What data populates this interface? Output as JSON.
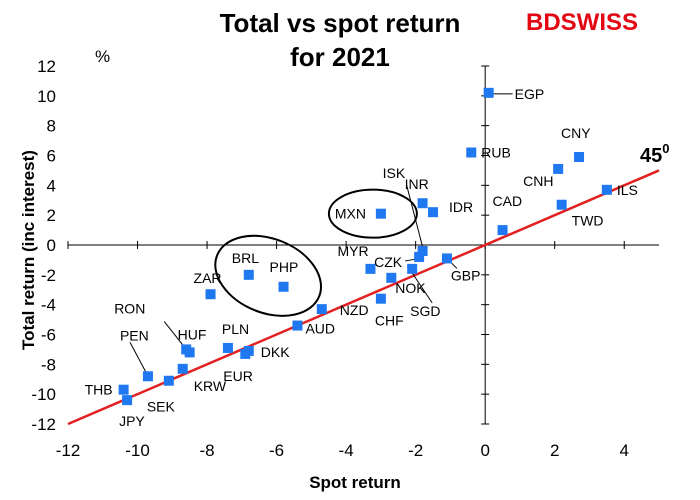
{
  "brand": {
    "part1": "BD",
    "part2": "SWISS",
    "color": "#e30613"
  },
  "chart_data": {
    "type": "scatter",
    "title": [
      "Total vs spot return",
      "for 2021"
    ],
    "unit_label": "%",
    "xlabel": "Spot return",
    "ylabel": "Total return (inc interest)",
    "xlim": [
      -12,
      5
    ],
    "ylim": [
      -12,
      12
    ],
    "xticks": [
      -12,
      -10,
      -8,
      -6,
      -4,
      -2,
      0,
      2,
      4
    ],
    "yticks": [
      12,
      10,
      8,
      6,
      4,
      2,
      0,
      -2,
      -4,
      -6,
      -8,
      -10,
      -12
    ],
    "marker_color": "#1f78f0",
    "reference_line": {
      "label": "45",
      "label_sup": "0",
      "color": "#e32020",
      "slope": 1,
      "intercept": 0
    },
    "points": [
      {
        "name": "EGP",
        "x": 0.1,
        "y": 10.2
      },
      {
        "name": "RUB",
        "x": -0.4,
        "y": 6.2
      },
      {
        "name": "CNY",
        "x": 2.7,
        "y": 5.9
      },
      {
        "name": "CNH",
        "x": 2.1,
        "y": 5.1
      },
      {
        "name": "ILS",
        "x": 3.5,
        "y": 3.7
      },
      {
        "name": "TWD",
        "x": 2.2,
        "y": 2.7
      },
      {
        "name": "CAD",
        "x": 0.5,
        "y": 1.0
      },
      {
        "name": "ISK",
        "x": -1.8,
        "y": -0.4
      },
      {
        "name": "INR",
        "x": -1.8,
        "y": 2.8
      },
      {
        "name": "IDR",
        "x": -1.5,
        "y": 2.2
      },
      {
        "name": "MXN",
        "x": -3.0,
        "y": 2.1
      },
      {
        "name": "CZK",
        "x": -1.9,
        "y": -0.8
      },
      {
        "name": "GBP",
        "x": -1.1,
        "y": -0.9
      },
      {
        "name": "MYR",
        "x": -3.3,
        "y": -1.6
      },
      {
        "name": "SGD",
        "x": -2.1,
        "y": -1.6
      },
      {
        "name": "NOK",
        "x": -2.7,
        "y": -2.2
      },
      {
        "name": "CHF",
        "x": -3.0,
        "y": -3.6
      },
      {
        "name": "NZD",
        "x": -4.7,
        "y": -4.3
      },
      {
        "name": "AUD",
        "x": -5.4,
        "y": -5.4
      },
      {
        "name": "BRL",
        "x": -6.8,
        "y": -2.0
      },
      {
        "name": "PHP",
        "x": -5.8,
        "y": -2.8
      },
      {
        "name": "ZAR",
        "x": -7.9,
        "y": -3.3
      },
      {
        "name": "RON",
        "x": -8.6,
        "y": -7.0
      },
      {
        "name": "HUF",
        "x": -8.5,
        "y": -7.2
      },
      {
        "name": "PLN",
        "x": -7.4,
        "y": -6.9
      },
      {
        "name": "DKK",
        "x": -6.8,
        "y": -7.1
      },
      {
        "name": "EUR",
        "x": -6.9,
        "y": -7.3
      },
      {
        "name": "PEN",
        "x": -9.7,
        "y": -8.8
      },
      {
        "name": "KRW",
        "x": -8.7,
        "y": -8.3
      },
      {
        "name": "SEK",
        "x": -9.1,
        "y": -9.1
      },
      {
        "name": "THB",
        "x": -10.4,
        "y": -9.7
      },
      {
        "name": "JPY",
        "x": -10.3,
        "y": -10.4
      }
    ],
    "annotations": [
      "MXN circled",
      "BRL and PHP circled"
    ]
  }
}
